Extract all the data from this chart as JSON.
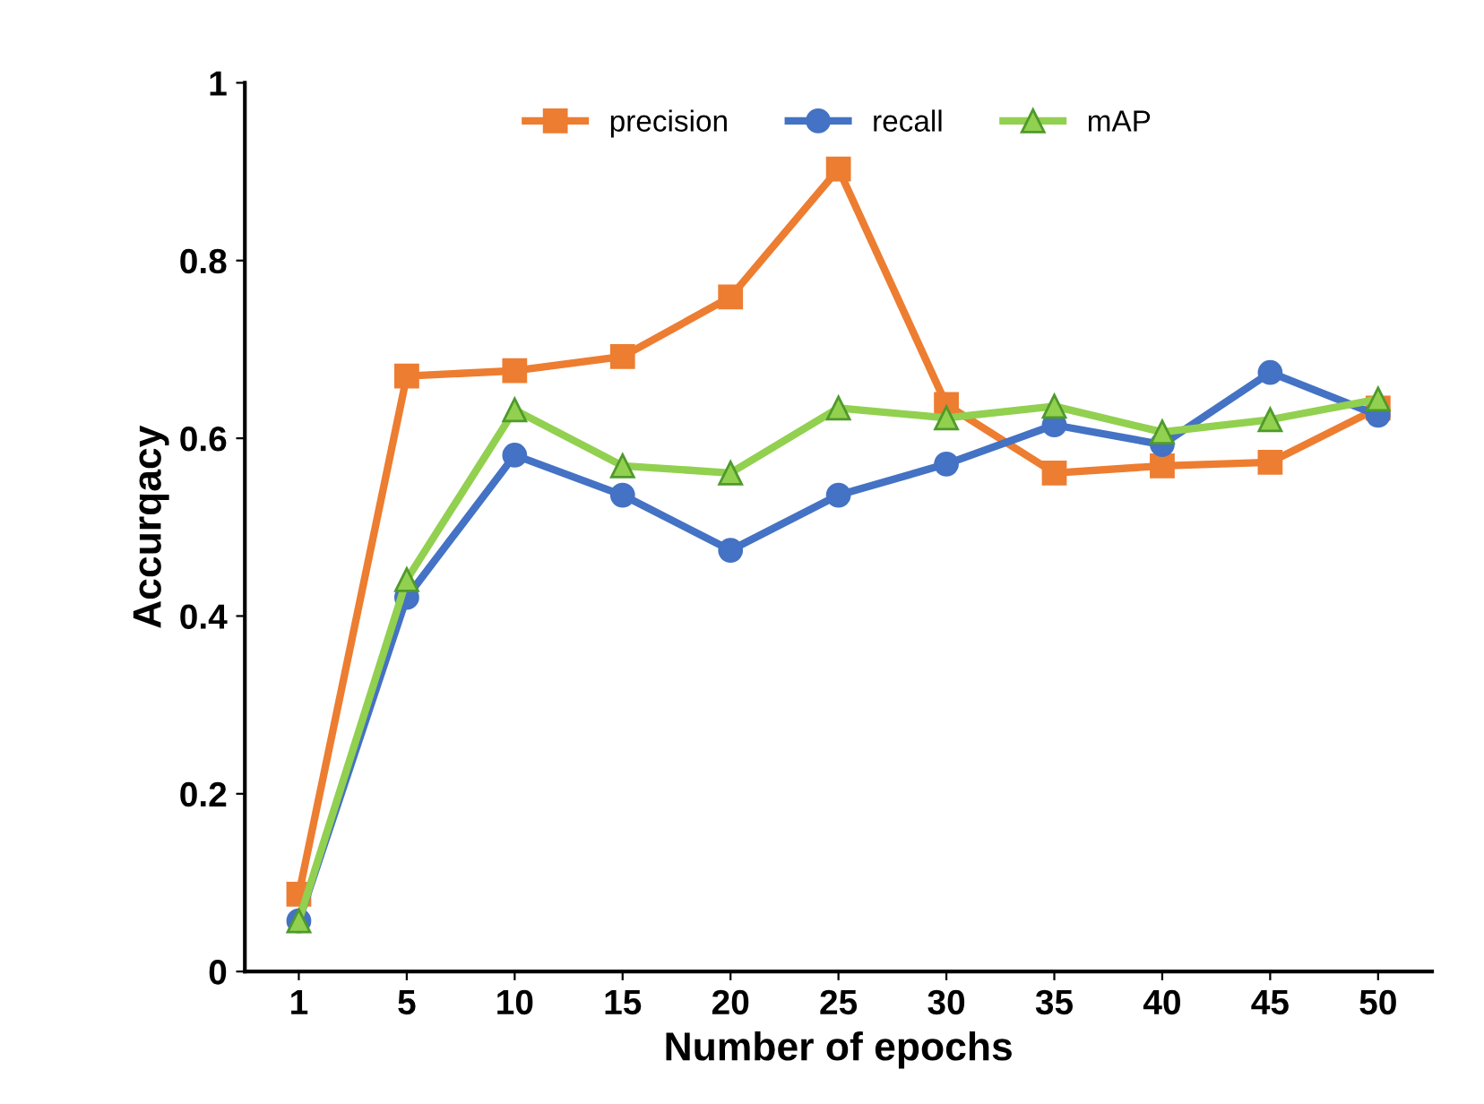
{
  "chart_data": {
    "type": "line",
    "xlabel": "Number of epochs",
    "ylabel": "Accurqacy",
    "categories": [
      "1",
      "5",
      "10",
      "15",
      "20",
      "25",
      "30",
      "35",
      "40",
      "45",
      "50"
    ],
    "series": [
      {
        "name": "precision",
        "color": "#ed7d31",
        "marker": "square",
        "values": [
          0.087,
          0.67,
          0.676,
          0.692,
          0.759,
          0.903,
          0.638,
          0.561,
          0.569,
          0.573,
          0.634
        ]
      },
      {
        "name": "recall",
        "color": "#4472c4",
        "marker": "circle",
        "values": [
          0.057,
          0.421,
          0.581,
          0.536,
          0.474,
          0.536,
          0.571,
          0.615,
          0.593,
          0.674,
          0.626
        ]
      },
      {
        "name": "mAP",
        "color": "#92d050",
        "marker": "triangle",
        "values": [
          0.057,
          0.441,
          0.632,
          0.569,
          0.561,
          0.634,
          0.623,
          0.636,
          0.607,
          0.621,
          0.644
        ]
      }
    ],
    "ylim": [
      0,
      1
    ],
    "yticks": [
      0,
      0.2,
      0.4,
      0.6,
      0.8,
      1
    ],
    "grid": false,
    "legend": "top",
    "line_style": "solid"
  }
}
